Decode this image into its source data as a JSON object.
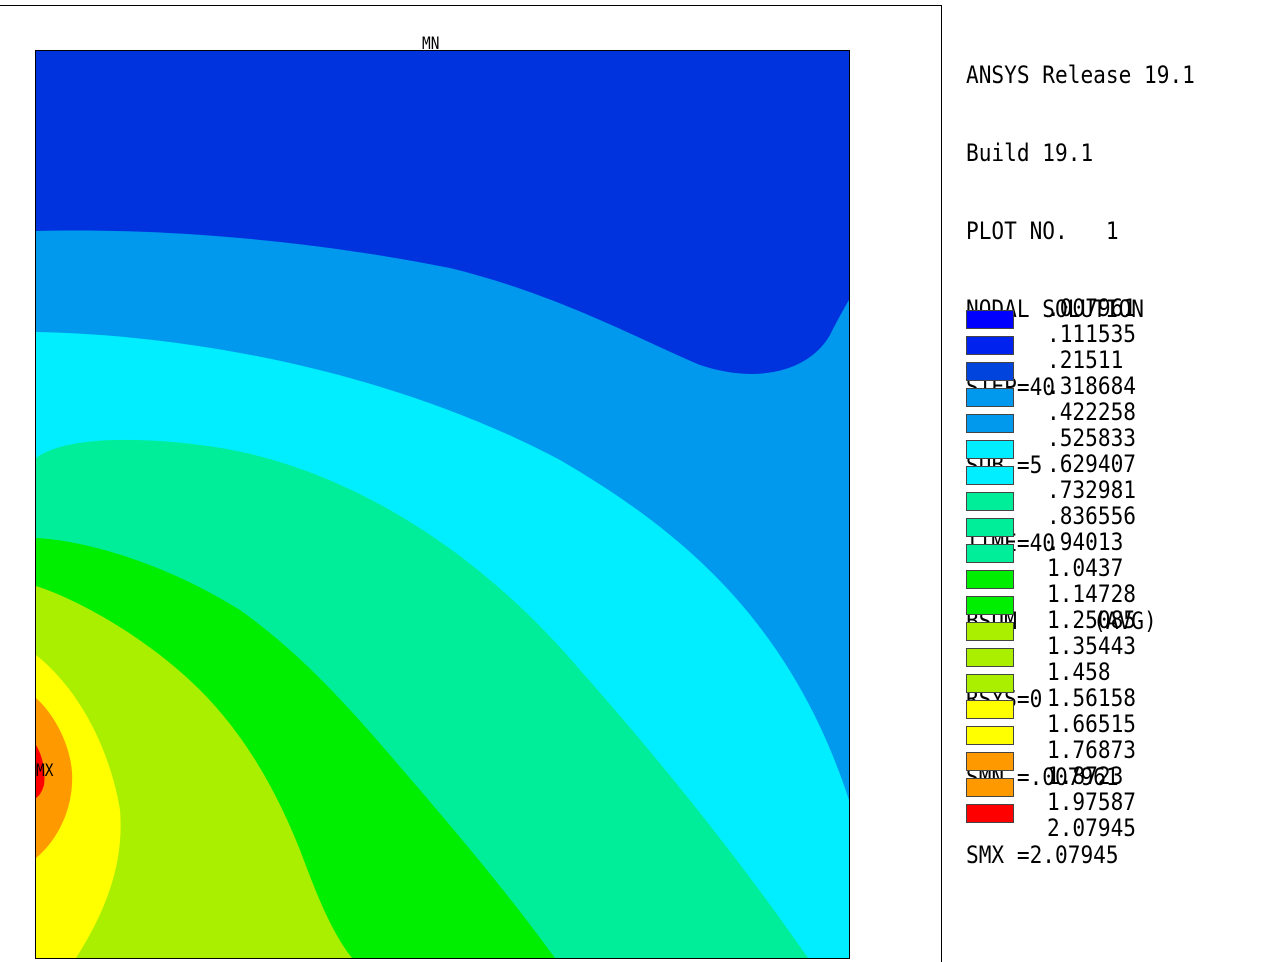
{
  "header": {
    "lines": [
      "ANSYS Release 19.1",
      "Build 19.1",
      "PLOT NO.   1",
      "NODAL SOLUTION",
      "STEP=40",
      "SUB =5",
      "TIME=40",
      "BSUM      (AVG)",
      "RSYS=0",
      "SMN =.007961",
      "SMX =2.07945"
    ]
  },
  "markers": {
    "min_label": "MN",
    "max_label": "MX"
  },
  "chart_data": {
    "type": "heatmap",
    "quantity": "BSUM",
    "min": 0.007961,
    "max": 2.07945,
    "legend_levels": [
      ".007961",
      ".111535",
      ".21511",
      ".318684",
      ".422258",
      ".525833",
      ".629407",
      ".732981",
      ".836556",
      ".94013",
      "1.0437",
      "1.14728",
      "1.25085",
      "1.35443",
      "1.458",
      "1.56158",
      "1.66515",
      "1.76873",
      "1.8723",
      "1.97587",
      "2.07945"
    ],
    "legend_colors": [
      "#0000ff",
      "#0022ee",
      "#0044dd",
      "#0099ee",
      "#0099ee",
      "#00eeff",
      "#00eeff",
      "#00ee99",
      "#00ee99",
      "#00ee99",
      "#00ee00",
      "#00ee00",
      "#aaee00",
      "#aaee00",
      "#aaee00",
      "#ffff00",
      "#ffff00",
      "#ff9900",
      "#ff9900",
      "#ff0000"
    ],
    "bands": [
      {
        "range": [
          0.007961,
          0.318684
        ],
        "color": "#0033dd"
      },
      {
        "range": [
          0.318684,
          0.525833
        ],
        "color": "#0099ee"
      },
      {
        "range": [
          0.525833,
          0.732981
        ],
        "color": "#00eeff"
      },
      {
        "range": [
          0.732981,
          1.0437
        ],
        "color": "#00ee99"
      },
      {
        "range": [
          1.0437,
          1.25085
        ],
        "color": "#00ee00"
      },
      {
        "range": [
          1.25085,
          1.56158
        ],
        "color": "#aaee00"
      },
      {
        "range": [
          1.56158,
          1.76873
        ],
        "color": "#ffff00"
      },
      {
        "range": [
          1.76873,
          1.97587
        ],
        "color": "#ff9900"
      },
      {
        "range": [
          1.97587,
          2.07945
        ],
        "color": "#ff0000"
      }
    ]
  }
}
